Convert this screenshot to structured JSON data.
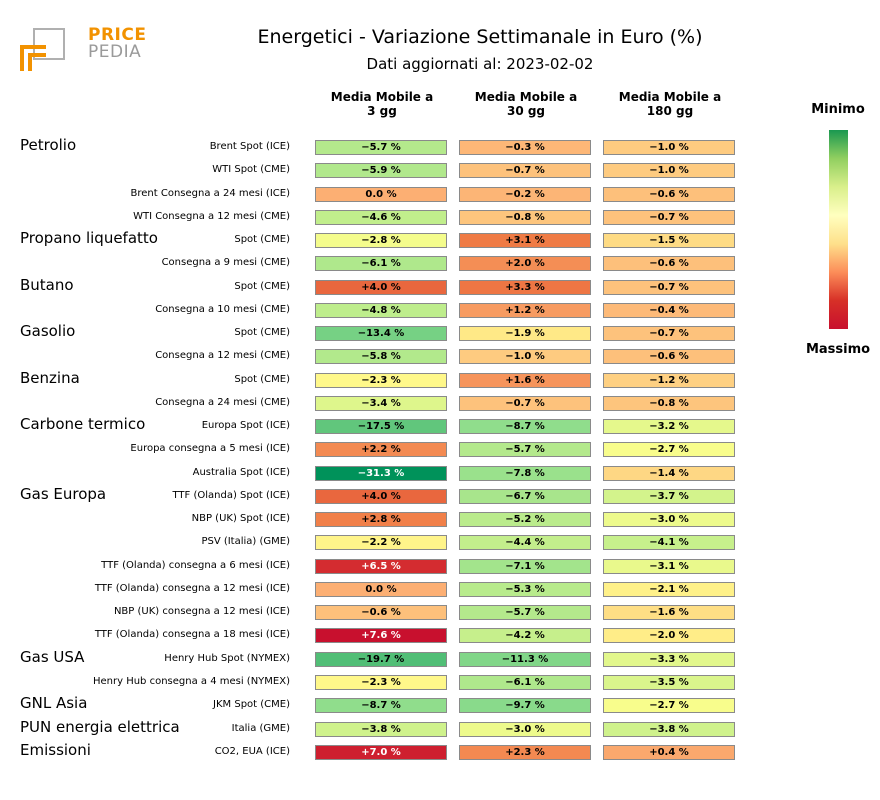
{
  "logo": {
    "line1": "PRICE",
    "line2": "PEDIA"
  },
  "chart_data": {
    "type": "table",
    "title": "Energetici - Variazione Settimanale in Euro (%)",
    "subtitle": "Dati aggiornati al: 2023-02-02",
    "columns": [
      "Media Mobile a\n3 gg",
      "Media Mobile a\n30 gg",
      "Media Mobile a\n180 gg"
    ],
    "colorbar": {
      "top_label": "Minimo",
      "bottom_label": "Massimo"
    },
    "groups": [
      {
        "name": "Petrolio",
        "rows": [
          {
            "label": "Brent Spot (ICE)",
            "values": [
              -5.7,
              -0.3,
              -1.0
            ]
          },
          {
            "label": "WTI Spot (CME)",
            "values": [
              -5.9,
              -0.7,
              -1.0
            ]
          },
          {
            "label": "Brent Consegna a 24 mesi (ICE)",
            "values": [
              0.0,
              -0.2,
              -0.6
            ]
          },
          {
            "label": "WTI Consegna a 12 mesi (CME)",
            "values": [
              -4.6,
              -0.8,
              -0.7
            ]
          }
        ]
      },
      {
        "name": "Propano liquefatto",
        "rows": [
          {
            "label": "Spot (CME)",
            "values": [
              -2.8,
              3.1,
              -1.5
            ]
          },
          {
            "label": "Consegna a 9 mesi (CME)",
            "values": [
              -6.1,
              2.0,
              -0.6
            ]
          }
        ]
      },
      {
        "name": "Butano",
        "rows": [
          {
            "label": "Spot (CME)",
            "values": [
              4.0,
              3.3,
              -0.7
            ]
          },
          {
            "label": "Consegna a 10 mesi (CME)",
            "values": [
              -4.8,
              1.2,
              -0.4
            ]
          }
        ]
      },
      {
        "name": "Gasolio",
        "rows": [
          {
            "label": "Spot (CME)",
            "values": [
              -13.4,
              -1.9,
              -0.7
            ]
          },
          {
            "label": "Consegna a 12 mesi (CME)",
            "values": [
              -5.8,
              -1.0,
              -0.6
            ]
          }
        ]
      },
      {
        "name": "Benzina",
        "rows": [
          {
            "label": "Spot (CME)",
            "values": [
              -2.3,
              1.6,
              -1.2
            ]
          },
          {
            "label": "Consegna a 24 mesi (CME)",
            "values": [
              -3.4,
              -0.7,
              -0.8
            ]
          }
        ]
      },
      {
        "name": "Carbone termico",
        "rows": [
          {
            "label": "Europa Spot (ICE)",
            "values": [
              -17.5,
              -8.7,
              -3.2
            ]
          },
          {
            "label": "Europa consegna a 5 mesi (ICE)",
            "values": [
              2.2,
              -5.7,
              -2.7
            ]
          },
          {
            "label": "Australia Spot (ICE)",
            "values": [
              -31.3,
              -7.8,
              -1.4
            ]
          }
        ]
      },
      {
        "name": "Gas Europa",
        "rows": [
          {
            "label": "TTF (Olanda) Spot (ICE)",
            "values": [
              4.0,
              -6.7,
              -3.7
            ]
          },
          {
            "label": "NBP (UK) Spot (ICE)",
            "values": [
              2.8,
              -5.2,
              -3.0
            ]
          },
          {
            "label": "PSV (Italia) (GME)",
            "values": [
              -2.2,
              -4.4,
              -4.1
            ]
          },
          {
            "label": "TTF (Olanda) consegna a 6 mesi (ICE)",
            "values": [
              6.5,
              -7.1,
              -3.1
            ]
          },
          {
            "label": "TTF (Olanda) consegna a 12 mesi (ICE)",
            "values": [
              0.0,
              -5.3,
              -2.1
            ]
          },
          {
            "label": "NBP (UK) consegna a 12 mesi (ICE)",
            "values": [
              -0.6,
              -5.7,
              -1.6
            ]
          },
          {
            "label": "TTF (Olanda) consegna a 18 mesi (ICE)",
            "values": [
              7.6,
              -4.2,
              -2.0
            ]
          }
        ]
      },
      {
        "name": "Gas USA",
        "rows": [
          {
            "label": "Henry Hub Spot (NYMEX)",
            "values": [
              -19.7,
              -11.3,
              -3.3
            ]
          },
          {
            "label": "Henry Hub consegna a 4 mesi (NYMEX)",
            "values": [
              -2.3,
              -6.1,
              -3.5
            ]
          }
        ]
      },
      {
        "name": "GNL Asia",
        "rows": [
          {
            "label": "JKM Spot (CME)",
            "values": [
              -8.7,
              -9.7,
              -2.7
            ]
          }
        ]
      },
      {
        "name": "PUN energia elettrica",
        "rows": [
          {
            "label": "Italia (GME)",
            "values": [
              -3.8,
              -3.0,
              -3.8
            ]
          }
        ]
      },
      {
        "name": "Emissioni",
        "rows": [
          {
            "label": "CO2, EUA (ICE)",
            "values": [
              7.0,
              2.3,
              0.4
            ]
          }
        ]
      }
    ]
  }
}
